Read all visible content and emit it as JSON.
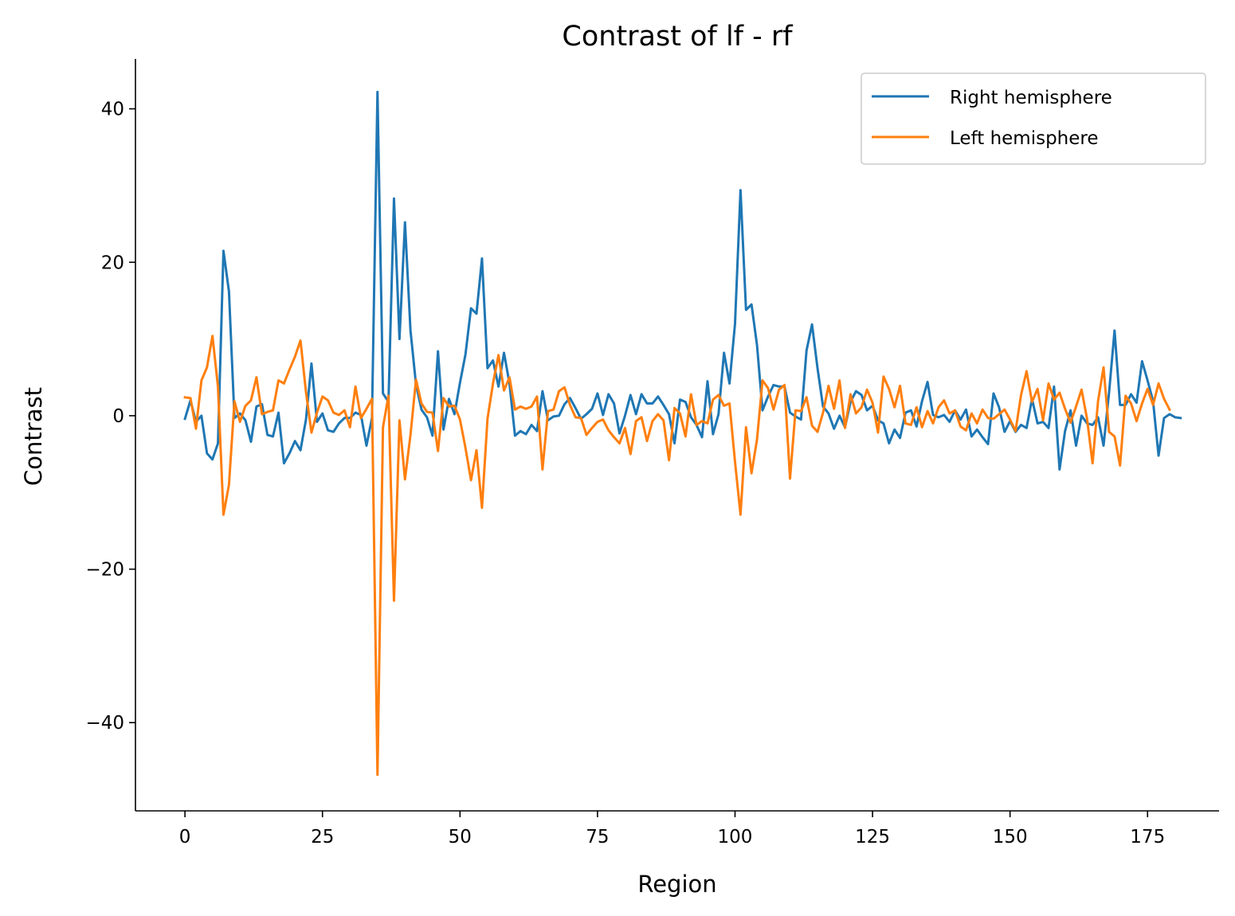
{
  "chart_data": {
    "type": "line",
    "title": "Contrast of lf - rf",
    "xlabel": "Region",
    "ylabel": "Contrast",
    "xlim": [
      -9,
      188
    ],
    "ylim": [
      -51.5,
      46.5
    ],
    "xticks": [
      0,
      25,
      50,
      75,
      100,
      125,
      150,
      175
    ],
    "yticks": [
      -40,
      -20,
      0,
      20,
      40
    ],
    "ytick_labels": [
      "−40",
      "−20",
      "0",
      "20",
      "40"
    ],
    "grid": false,
    "legend_position": "top-right",
    "series": [
      {
        "name": "Right hemisphere",
        "color": "#1f77b4",
        "values": [
          -0.4,
          2.0,
          -0.8,
          0.0,
          -4.9,
          -5.7,
          -3.6,
          21.5,
          16.2,
          -0.3,
          0.3,
          -0.6,
          -3.4,
          1.2,
          1.5,
          -2.5,
          -2.7,
          0.4,
          -6.2,
          -4.9,
          -3.3,
          -4.5,
          -0.5,
          6.8,
          -0.8,
          0.3,
          -1.9,
          -2.1,
          -1.0,
          -0.3,
          -0.3,
          0.4,
          0.1,
          -3.9,
          -0.3,
          42.2,
          2.9,
          1.8,
          28.3,
          10.0,
          25.2,
          11.1,
          4.1,
          0.8,
          -0.2,
          -2.6,
          8.4,
          -1.8,
          2.2,
          0.2,
          4.3,
          8.0,
          14.0,
          13.3,
          20.5,
          6.2,
          7.2,
          3.8,
          8.2,
          4.2,
          -2.6,
          -2.0,
          -2.4,
          -1.2,
          -2.0,
          3.2,
          -0.6,
          -0.1,
          0.0,
          1.5,
          2.3,
          1.0,
          -0.4,
          0.2,
          0.9,
          2.9,
          0.1,
          2.8,
          1.6,
          -2.3,
          0.0,
          2.7,
          0.2,
          2.8,
          1.6,
          1.6,
          2.5,
          1.4,
          0.2,
          -3.6,
          2.1,
          1.8,
          -0.2,
          -1.2,
          -2.8,
          4.5,
          -2.4,
          0.2,
          8.2,
          4.2,
          12.0,
          29.4,
          13.8,
          14.5,
          9.2,
          0.7,
          2.5,
          4.0,
          3.8,
          3.8,
          0.4,
          -0.1,
          -0.5,
          8.5,
          11.9,
          6.2,
          1.2,
          0.3,
          -1.7,
          0.0,
          -1.5,
          1.8,
          3.2,
          2.7,
          0.7,
          1.3,
          -0.6,
          -1.0,
          -3.6,
          -1.8,
          -2.9,
          0.4,
          0.7,
          -1.4,
          1.9,
          4.4,
          0.1,
          -0.2,
          0.1,
          -0.8,
          0.7,
          -0.5,
          0.8,
          -2.7,
          -1.8,
          -2.8,
          -3.7,
          2.9,
          1.1,
          -2.1,
          -0.7,
          -2.1,
          -1.2,
          -1.6,
          2.2,
          -1.0,
          -0.8,
          -1.6,
          3.8,
          -7.0,
          -2.0,
          0.7,
          -3.9,
          0.0,
          -1.0,
          -1.2,
          -0.2,
          -3.9,
          3.0,
          11.1,
          1.4,
          1.4,
          2.8,
          1.7,
          7.1,
          4.6,
          1.9,
          -5.2,
          -0.3,
          0.2,
          -0.2,
          -0.3
        ]
      },
      {
        "name": "Left hemisphere",
        "color": "#ff7f0e",
        "values": [
          2.4,
          2.3,
          -1.7,
          4.6,
          6.3,
          10.4,
          3.8,
          -12.9,
          -9.0,
          1.9,
          -0.8,
          1.3,
          2.0,
          5.0,
          0.2,
          0.5,
          0.7,
          4.6,
          4.2,
          6.0,
          7.7,
          9.8,
          3.1,
          -2.2,
          0.4,
          2.5,
          2.0,
          0.4,
          0.1,
          0.7,
          -1.5,
          3.8,
          -0.3,
          0.9,
          2.2,
          -46.8,
          -1.5,
          2.6,
          -24.1,
          -0.6,
          -8.3,
          -2.5,
          4.7,
          1.6,
          0.5,
          0.4,
          -4.6,
          2.3,
          1.2,
          1.3,
          -0.5,
          -4.2,
          -8.4,
          -4.5,
          -12.0,
          -0.4,
          4.2,
          7.9,
          3.3,
          5.0,
          0.8,
          1.2,
          0.9,
          1.2,
          2.5,
          -7.0,
          0.6,
          0.8,
          3.2,
          3.7,
          1.4,
          -0.2,
          -0.3,
          -2.5,
          -1.6,
          -0.8,
          -0.5,
          -1.9,
          -2.8,
          -3.6,
          -1.6,
          -5.0,
          -0.7,
          -0.2,
          -3.3,
          -0.7,
          0.2,
          -0.6,
          -5.8,
          1.0,
          0.3,
          -2.7,
          2.8,
          -1.2,
          -0.7,
          -1.0,
          2.1,
          2.7,
          1.3,
          1.6,
          -6.0,
          -12.9,
          -1.5,
          -7.5,
          -3.1,
          4.6,
          3.6,
          0.8,
          3.4,
          4.0,
          -8.2,
          0.7,
          0.6,
          2.4,
          -1.3,
          -2.1,
          0.4,
          3.9,
          0.9,
          4.6,
          -1.6,
          2.8,
          0.3,
          1.1,
          3.4,
          1.7,
          -2.2,
          5.1,
          3.5,
          1.1,
          3.9,
          -1.0,
          -1.2,
          1.1,
          -1.5,
          0.6,
          -1.0,
          1.1,
          2.0,
          0.3,
          0.7,
          -1.4,
          -1.9,
          0.3,
          -1.0,
          0.8,
          -0.3,
          -0.4,
          0.2,
          0.8,
          -0.5,
          -2.0,
          2.7,
          5.8,
          1.8,
          3.5,
          -0.6,
          4.2,
          2.1,
          3.0,
          0.9,
          -0.9,
          1.2,
          3.4,
          -0.4,
          -6.2,
          1.9,
          6.3,
          -2.1,
          -2.7,
          -6.5,
          2.6,
          1.6,
          -0.7,
          1.6,
          3.5,
          1.4,
          4.2,
          2.2,
          0.8
        ]
      }
    ]
  }
}
